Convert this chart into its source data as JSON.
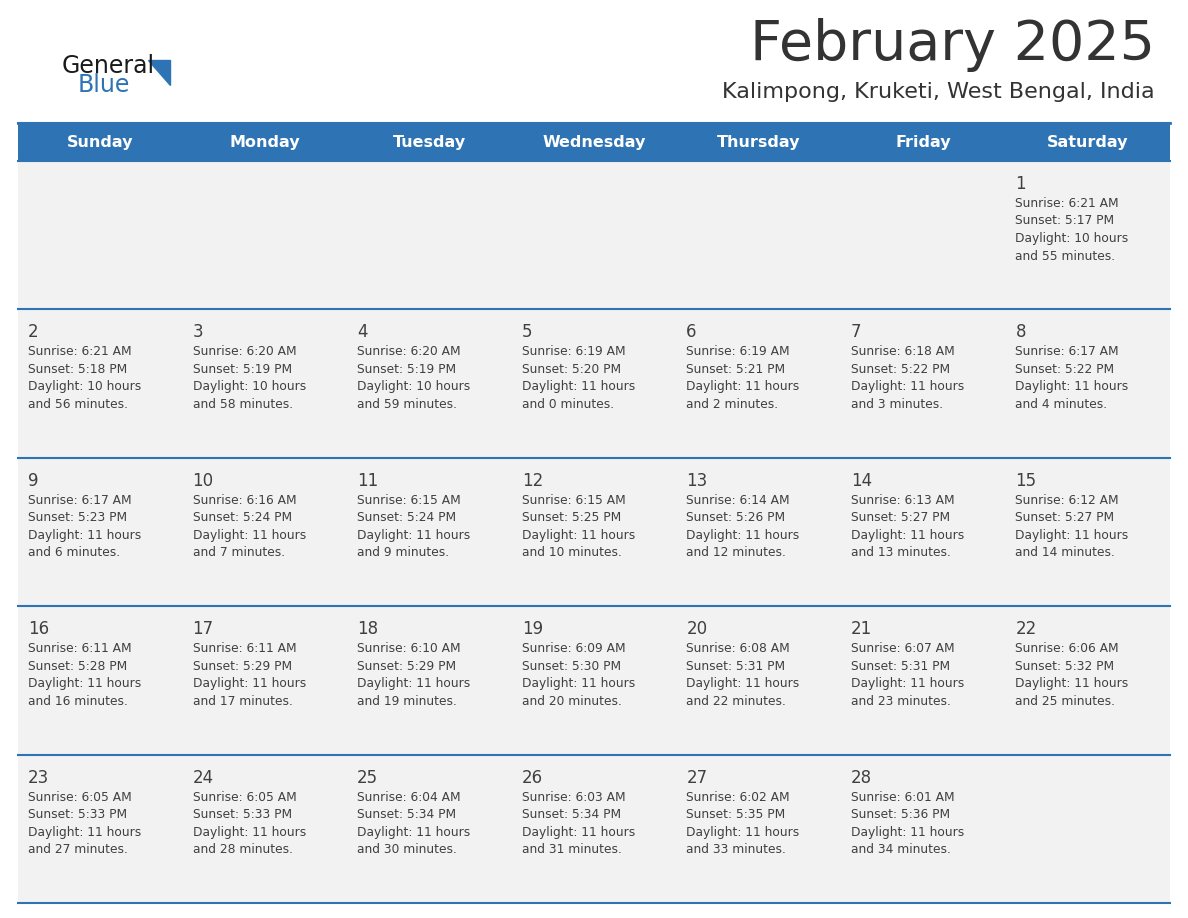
{
  "title": "February 2025",
  "subtitle": "Kalimpong, Kruketi, West Bengal, India",
  "days_of_week": [
    "Sunday",
    "Monday",
    "Tuesday",
    "Wednesday",
    "Thursday",
    "Friday",
    "Saturday"
  ],
  "header_bg": "#2E74B5",
  "header_text": "#FFFFFF",
  "cell_bg": "#F2F2F2",
  "separator_color": "#2E74B5",
  "text_color": "#404040",
  "title_color": "#333333",
  "calendar_data": [
    [
      {
        "day": "",
        "lines": []
      },
      {
        "day": "",
        "lines": []
      },
      {
        "day": "",
        "lines": []
      },
      {
        "day": "",
        "lines": []
      },
      {
        "day": "",
        "lines": []
      },
      {
        "day": "",
        "lines": []
      },
      {
        "day": "1",
        "lines": [
          "Sunrise: 6:21 AM",
          "Sunset: 5:17 PM",
          "Daylight: 10 hours",
          "and 55 minutes."
        ]
      }
    ],
    [
      {
        "day": "2",
        "lines": [
          "Sunrise: 6:21 AM",
          "Sunset: 5:18 PM",
          "Daylight: 10 hours",
          "and 56 minutes."
        ]
      },
      {
        "day": "3",
        "lines": [
          "Sunrise: 6:20 AM",
          "Sunset: 5:19 PM",
          "Daylight: 10 hours",
          "and 58 minutes."
        ]
      },
      {
        "day": "4",
        "lines": [
          "Sunrise: 6:20 AM",
          "Sunset: 5:19 PM",
          "Daylight: 10 hours",
          "and 59 minutes."
        ]
      },
      {
        "day": "5",
        "lines": [
          "Sunrise: 6:19 AM",
          "Sunset: 5:20 PM",
          "Daylight: 11 hours",
          "and 0 minutes."
        ]
      },
      {
        "day": "6",
        "lines": [
          "Sunrise: 6:19 AM",
          "Sunset: 5:21 PM",
          "Daylight: 11 hours",
          "and 2 minutes."
        ]
      },
      {
        "day": "7",
        "lines": [
          "Sunrise: 6:18 AM",
          "Sunset: 5:22 PM",
          "Daylight: 11 hours",
          "and 3 minutes."
        ]
      },
      {
        "day": "8",
        "lines": [
          "Sunrise: 6:17 AM",
          "Sunset: 5:22 PM",
          "Daylight: 11 hours",
          "and 4 minutes."
        ]
      }
    ],
    [
      {
        "day": "9",
        "lines": [
          "Sunrise: 6:17 AM",
          "Sunset: 5:23 PM",
          "Daylight: 11 hours",
          "and 6 minutes."
        ]
      },
      {
        "day": "10",
        "lines": [
          "Sunrise: 6:16 AM",
          "Sunset: 5:24 PM",
          "Daylight: 11 hours",
          "and 7 minutes."
        ]
      },
      {
        "day": "11",
        "lines": [
          "Sunrise: 6:15 AM",
          "Sunset: 5:24 PM",
          "Daylight: 11 hours",
          "and 9 minutes."
        ]
      },
      {
        "day": "12",
        "lines": [
          "Sunrise: 6:15 AM",
          "Sunset: 5:25 PM",
          "Daylight: 11 hours",
          "and 10 minutes."
        ]
      },
      {
        "day": "13",
        "lines": [
          "Sunrise: 6:14 AM",
          "Sunset: 5:26 PM",
          "Daylight: 11 hours",
          "and 12 minutes."
        ]
      },
      {
        "day": "14",
        "lines": [
          "Sunrise: 6:13 AM",
          "Sunset: 5:27 PM",
          "Daylight: 11 hours",
          "and 13 minutes."
        ]
      },
      {
        "day": "15",
        "lines": [
          "Sunrise: 6:12 AM",
          "Sunset: 5:27 PM",
          "Daylight: 11 hours",
          "and 14 minutes."
        ]
      }
    ],
    [
      {
        "day": "16",
        "lines": [
          "Sunrise: 6:11 AM",
          "Sunset: 5:28 PM",
          "Daylight: 11 hours",
          "and 16 minutes."
        ]
      },
      {
        "day": "17",
        "lines": [
          "Sunrise: 6:11 AM",
          "Sunset: 5:29 PM",
          "Daylight: 11 hours",
          "and 17 minutes."
        ]
      },
      {
        "day": "18",
        "lines": [
          "Sunrise: 6:10 AM",
          "Sunset: 5:29 PM",
          "Daylight: 11 hours",
          "and 19 minutes."
        ]
      },
      {
        "day": "19",
        "lines": [
          "Sunrise: 6:09 AM",
          "Sunset: 5:30 PM",
          "Daylight: 11 hours",
          "and 20 minutes."
        ]
      },
      {
        "day": "20",
        "lines": [
          "Sunrise: 6:08 AM",
          "Sunset: 5:31 PM",
          "Daylight: 11 hours",
          "and 22 minutes."
        ]
      },
      {
        "day": "21",
        "lines": [
          "Sunrise: 6:07 AM",
          "Sunset: 5:31 PM",
          "Daylight: 11 hours",
          "and 23 minutes."
        ]
      },
      {
        "day": "22",
        "lines": [
          "Sunrise: 6:06 AM",
          "Sunset: 5:32 PM",
          "Daylight: 11 hours",
          "and 25 minutes."
        ]
      }
    ],
    [
      {
        "day": "23",
        "lines": [
          "Sunrise: 6:05 AM",
          "Sunset: 5:33 PM",
          "Daylight: 11 hours",
          "and 27 minutes."
        ]
      },
      {
        "day": "24",
        "lines": [
          "Sunrise: 6:05 AM",
          "Sunset: 5:33 PM",
          "Daylight: 11 hours",
          "and 28 minutes."
        ]
      },
      {
        "day": "25",
        "lines": [
          "Sunrise: 6:04 AM",
          "Sunset: 5:34 PM",
          "Daylight: 11 hours",
          "and 30 minutes."
        ]
      },
      {
        "day": "26",
        "lines": [
          "Sunrise: 6:03 AM",
          "Sunset: 5:34 PM",
          "Daylight: 11 hours",
          "and 31 minutes."
        ]
      },
      {
        "day": "27",
        "lines": [
          "Sunrise: 6:02 AM",
          "Sunset: 5:35 PM",
          "Daylight: 11 hours",
          "and 33 minutes."
        ]
      },
      {
        "day": "28",
        "lines": [
          "Sunrise: 6:01 AM",
          "Sunset: 5:36 PM",
          "Daylight: 11 hours",
          "and 34 minutes."
        ]
      },
      {
        "day": "",
        "lines": []
      }
    ]
  ]
}
